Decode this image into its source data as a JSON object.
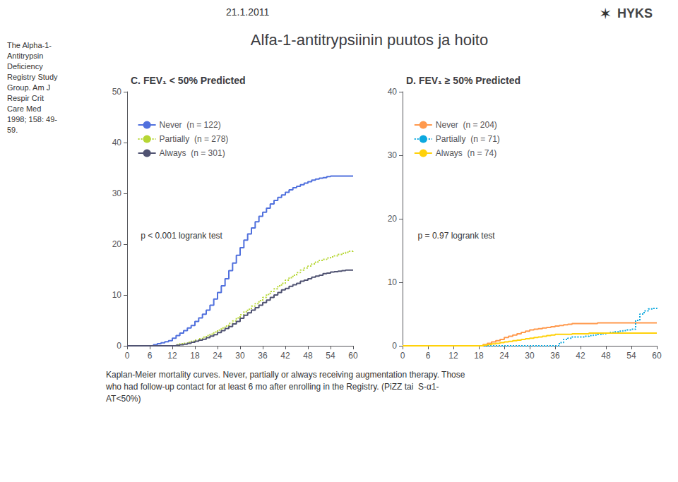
{
  "title": "Alfa-1-antitrypsiinin puutos ja hoito",
  "annotations": [
    "21.1.2011",
    "✶",
    "HYKS",
    "The Alpha-1-\nAntitrypsin\nDeficiency\nRegistry Study\nGroup. Am J\nRespir Crit\nCare Med\n1998; 158: 49-\n59.",
    "Kaplan-Meier mortality curves. Never, partially or always receiving augmentation therapy. Those\nwho had follow-up contact for at least 6 mo after enrolling in the Registry. (PiZZ tai  S-α1-\nAT<50%)"
  ],
  "chart_data": [
    {
      "type": "step",
      "title": "C. FEV₁ < 50% Predicted",
      "annotations": [
        "p < 0.001 logrank test"
      ],
      "xlim": [
        0,
        60
      ],
      "xticks": [
        0,
        6,
        12,
        18,
        24,
        30,
        36,
        42,
        48,
        54,
        60
      ],
      "ylim": [
        0,
        50
      ],
      "yticks": [
        0,
        10,
        20,
        30,
        40,
        50
      ],
      "grid": false,
      "legend": "upper left",
      "series": [
        {
          "name": "Never  (n = 122)",
          "line_style": "solid",
          "x": [
            0,
            6,
            7,
            8,
            9,
            10,
            11,
            12,
            13,
            14,
            15,
            16,
            17,
            18,
            19,
            20,
            21,
            22,
            23,
            24,
            25,
            26,
            27,
            28,
            29,
            30,
            31,
            32,
            33,
            34,
            35,
            36,
            37,
            38,
            39,
            40,
            41,
            42,
            43,
            44,
            45,
            46,
            47,
            48,
            49,
            50,
            51,
            52,
            53,
            54,
            55,
            56,
            57,
            58,
            59,
            60
          ],
          "values": [
            0,
            0,
            0.2,
            0.4,
            0.6,
            0.8,
            1.0,
            1.5,
            2.0,
            2.5,
            3.0,
            3.5,
            4.0,
            4.8,
            5.5,
            6.2,
            7.0,
            8.0,
            9.2,
            10.5,
            11.8,
            13.2,
            14.8,
            16.3,
            17.8,
            19.3,
            20.8,
            22.0,
            23.2,
            24.4,
            25.5,
            26.3,
            27.1,
            27.9,
            28.6,
            29.2,
            29.7,
            30.2,
            30.7,
            31.1,
            31.4,
            31.7,
            32.0,
            32.3,
            32.6,
            32.8,
            33.0,
            33.1,
            33.3,
            33.4,
            33.4,
            33.4,
            33.4,
            33.4,
            33.4,
            33.4
          ]
        },
        {
          "name": "Partially  (n = 278)",
          "line_style": "dotted",
          "x": [
            0,
            12,
            13,
            14,
            15,
            16,
            17,
            18,
            19,
            20,
            21,
            22,
            23,
            24,
            25,
            26,
            27,
            28,
            29,
            30,
            31,
            32,
            33,
            34,
            35,
            36,
            37,
            38,
            39,
            40,
            41,
            42,
            43,
            44,
            45,
            46,
            47,
            48,
            49,
            50,
            51,
            52,
            53,
            54,
            55,
            56,
            57,
            58,
            59,
            60
          ],
          "values": [
            0,
            0,
            0.2,
            0.4,
            0.5,
            0.7,
            0.9,
            1.1,
            1.4,
            1.7,
            2.0,
            2.3,
            2.7,
            3.1,
            3.5,
            3.9,
            4.4,
            4.9,
            5.5,
            6.1,
            6.7,
            7.2,
            7.8,
            8.3,
            8.9,
            9.5,
            10.1,
            10.7,
            11.2,
            11.8,
            12.3,
            12.9,
            13.4,
            13.9,
            14.4,
            14.9,
            15.3,
            15.7,
            16.1,
            16.5,
            16.8,
            17.0,
            17.3,
            17.5,
            17.7,
            18.0,
            18.2,
            18.4,
            18.6,
            18.8
          ]
        },
        {
          "name": "Always  (n = 301)",
          "line_style": "solid",
          "x": [
            0,
            12,
            13,
            14,
            15,
            16,
            17,
            18,
            19,
            20,
            21,
            22,
            23,
            24,
            25,
            26,
            27,
            28,
            29,
            30,
            31,
            32,
            33,
            34,
            35,
            36,
            37,
            38,
            39,
            40,
            41,
            42,
            43,
            44,
            45,
            46,
            47,
            48,
            49,
            50,
            51,
            52,
            53,
            54,
            55,
            56,
            57,
            58,
            59,
            60
          ],
          "values": [
            0,
            0,
            0.1,
            0.2,
            0.3,
            0.5,
            0.7,
            0.9,
            1.1,
            1.3,
            1.6,
            1.9,
            2.2,
            2.6,
            3.0,
            3.4,
            3.8,
            4.3,
            4.8,
            5.4,
            6.0,
            6.5,
            7.0,
            7.5,
            8.0,
            8.5,
            9.0,
            9.5,
            10.0,
            10.5,
            11.0,
            11.3,
            11.7,
            12.0,
            12.3,
            12.7,
            12.9,
            13.2,
            13.5,
            13.7,
            13.9,
            14.2,
            14.3,
            14.5,
            14.6,
            14.7,
            14.8,
            14.9,
            14.9,
            14.9
          ]
        }
      ]
    },
    {
      "type": "step",
      "title": "D. FEV₁ ≥ 50% Predicted",
      "annotations": [
        "p = 0.97 logrank test"
      ],
      "xlim": [
        0,
        60
      ],
      "xticks": [
        0,
        6,
        12,
        18,
        24,
        30,
        36,
        42,
        48,
        54,
        60
      ],
      "ylim": [
        0,
        40
      ],
      "yticks": [
        0,
        10,
        20,
        30,
        40
      ],
      "grid": false,
      "legend": "upper left",
      "series": [
        {
          "name": "Never  (n = 204)",
          "line_style": "solid",
          "x": [
            0,
            18,
            19,
            20,
            21,
            22,
            23,
            24,
            25,
            26,
            27,
            28,
            29,
            30,
            31,
            32,
            33,
            34,
            35,
            36,
            37,
            38,
            39,
            40,
            41,
            42,
            43,
            44,
            45,
            46,
            47,
            48,
            49,
            50,
            51,
            52,
            53,
            54,
            55,
            56,
            57,
            58,
            59,
            60
          ],
          "values": [
            0,
            0,
            0.2,
            0.4,
            0.6,
            0.8,
            1.0,
            1.3,
            1.5,
            1.7,
            1.9,
            2.1,
            2.3,
            2.5,
            2.6,
            2.7,
            2.8,
            2.9,
            3.0,
            3.1,
            3.2,
            3.3,
            3.4,
            3.5,
            3.5,
            3.5,
            3.5,
            3.5,
            3.5,
            3.6,
            3.6,
            3.6,
            3.6,
            3.6,
            3.6,
            3.6,
            3.6,
            3.6,
            3.6,
            3.6,
            3.6,
            3.6,
            3.6,
            3.6
          ]
        },
        {
          "name": "Partially  (n = 71)",
          "line_style": "dotted",
          "x": [
            0,
            36,
            37,
            38,
            39,
            40,
            41,
            42,
            43,
            44,
            45,
            46,
            47,
            48,
            49,
            50,
            51,
            52,
            53,
            54,
            55,
            56,
            57,
            58,
            59,
            60
          ],
          "values": [
            0,
            0,
            0.5,
            1.0,
            1.2,
            1.4,
            1.4,
            1.4,
            1.5,
            1.6,
            1.7,
            1.8,
            1.9,
            2.0,
            2.1,
            2.2,
            2.3,
            2.4,
            2.5,
            2.6,
            4.0,
            5.0,
            5.5,
            5.8,
            5.9,
            6.0
          ]
        },
        {
          "name": "Always  (n = 74)",
          "line_style": "solid",
          "x": [
            0,
            18,
            19,
            20,
            21,
            22,
            23,
            24,
            25,
            26,
            27,
            28,
            29,
            30,
            31,
            32,
            33,
            34,
            35,
            36,
            37,
            38,
            39,
            40,
            41,
            42,
            43,
            44,
            45,
            46,
            47,
            48,
            49,
            50,
            51,
            52,
            53,
            54,
            55,
            56,
            57,
            58,
            59,
            60
          ],
          "values": [
            0,
            0,
            0.1,
            0.2,
            0.3,
            0.4,
            0.5,
            0.6,
            0.7,
            0.8,
            0.9,
            1.0,
            1.1,
            1.2,
            1.3,
            1.4,
            1.5,
            1.6,
            1.7,
            1.8,
            1.8,
            1.8,
            1.8,
            1.9,
            1.9,
            1.9,
            1.9,
            2.0,
            2.0,
            2.0,
            2.0,
            2.0,
            2.0,
            2.0,
            2.0,
            2.0,
            2.0,
            2.0,
            2.0,
            2.0,
            2.0,
            2.0,
            2.0,
            2.0
          ]
        }
      ]
    }
  ]
}
